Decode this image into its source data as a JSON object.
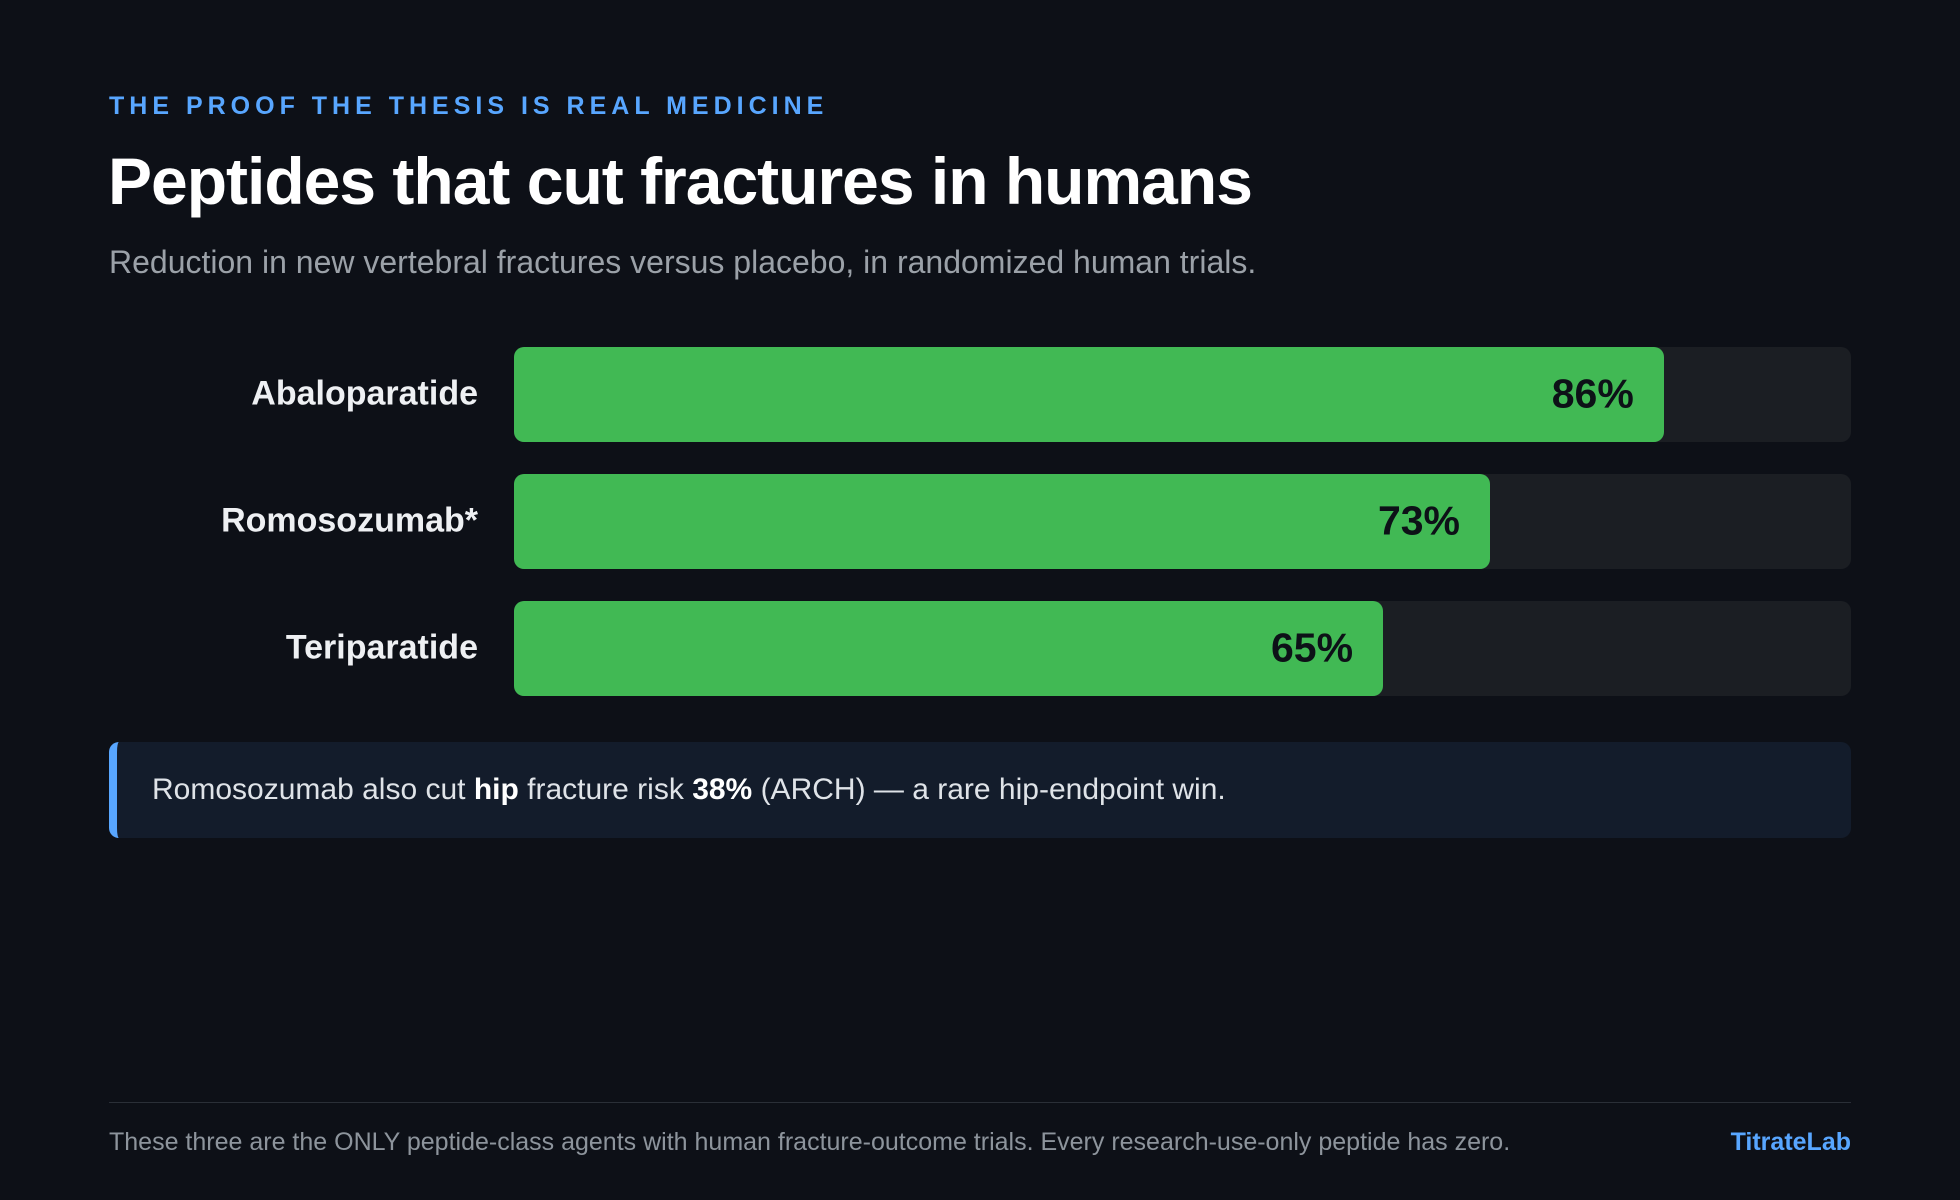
{
  "chart_data": {
    "type": "bar",
    "orientation": "horizontal",
    "eyebrow": "THE PROOF THE THESIS IS REAL MEDICINE",
    "title": "Peptides that cut fractures in humans",
    "subtitle": "Reduction in new vertebral fractures versus placebo, in randomized human trials.",
    "categories": [
      "Abaloparatide",
      "Romosozumab*",
      "Teriparatide"
    ],
    "values": [
      86,
      73,
      65
    ],
    "value_labels": [
      "86%",
      "73%",
      "65%"
    ],
    "color": "#41b954",
    "xlim": [
      0,
      100
    ]
  },
  "note": {
    "parts": [
      "Romosozumab also cut ",
      "hip",
      " fracture risk ",
      "38%",
      " (ARCH) — a rare hip-endpoint win."
    ]
  },
  "footer": {
    "text": "These three are the ONLY peptide-class agents with human fracture-outcome trials. Every research-use-only peptide has zero.",
    "brand": "TitrateLab"
  }
}
